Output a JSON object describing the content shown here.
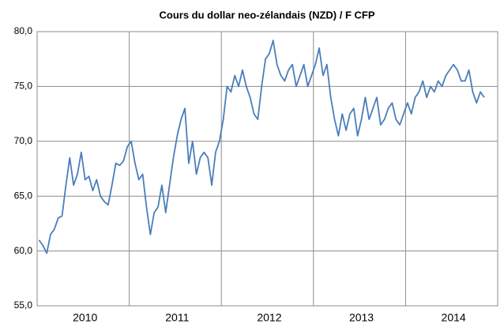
{
  "chart_data": {
    "type": "line",
    "title": "Cours du dollar neo-zélandais (NZD) / F CFP",
    "categories": [
      null,
      null,
      null,
      null,
      null,
      null,
      null,
      null,
      null,
      null,
      null,
      null,
      "2010",
      null,
      null,
      null,
      null,
      null,
      null,
      null,
      null,
      null,
      null,
      null,
      null,
      null,
      null,
      null,
      null,
      null,
      null,
      null,
      null,
      null,
      null,
      null,
      "2011",
      null,
      null,
      null,
      null,
      null,
      null,
      null,
      null,
      null,
      null,
      null,
      null,
      null,
      null,
      null,
      null,
      null,
      null,
      null,
      null,
      null,
      null,
      null,
      "2012",
      null,
      null,
      null,
      null,
      null,
      null,
      null,
      null,
      null,
      null,
      null,
      null,
      null,
      null,
      null,
      null,
      null,
      null,
      null,
      null,
      null,
      null,
      null,
      "2013",
      null,
      null,
      null,
      null,
      null,
      null,
      null,
      null,
      null,
      null,
      null,
      null,
      null,
      null,
      null,
      null,
      null,
      null,
      null,
      null,
      null,
      null,
      null,
      "2014",
      null,
      null,
      null,
      null,
      null,
      null,
      null,
      null,
      null,
      null,
      null
    ],
    "series": [
      {
        "name": "NZD",
        "color": "#4a7ebb",
        "values": [
          61,
          60.5,
          59.8,
          61.5,
          62,
          63,
          63.2,
          66,
          68.5,
          66,
          67,
          69,
          66.5,
          66.8,
          65.5,
          66.5,
          65,
          64.5,
          64.2,
          66,
          68,
          67.8,
          68.2,
          69.5,
          70,
          68,
          66.5,
          67,
          64,
          61.5,
          63.5,
          64,
          66,
          63.5,
          66,
          68.5,
          70.5,
          72,
          73,
          68,
          70,
          67,
          68.5,
          69,
          68.5,
          66,
          69,
          70,
          72,
          75,
          74.5,
          76,
          75,
          76.5,
          75,
          74,
          72.5,
          72,
          75,
          77.5,
          78,
          79.2,
          77,
          76,
          75.5,
          76.5,
          77,
          75,
          76,
          77,
          75,
          76,
          77,
          78.5,
          76,
          77,
          74,
          72,
          70.5,
          72.5,
          71,
          72.5,
          73,
          70.5,
          72,
          74,
          72,
          73,
          74,
          71.5,
          72,
          73,
          73.5,
          72,
          71.5,
          72.5,
          73.5,
          72.5,
          74,
          74.5,
          75.5,
          74,
          75,
          74.5,
          75.5,
          75,
          76,
          76.5,
          77,
          76.5,
          75.5,
          75.5,
          76.5,
          74.5,
          73.5,
          74.5,
          74,
          null,
          null,
          null
        ]
      }
    ],
    "ylim": [
      55,
      80
    ],
    "yticks": [
      {
        "value": 55,
        "label": "55,0"
      },
      {
        "value": 60,
        "label": "60,0"
      },
      {
        "value": 65,
        "label": "65,0"
      },
      {
        "value": 70,
        "label": "70,0"
      },
      {
        "value": 75,
        "label": "75,0"
      },
      {
        "value": 80,
        "label": "80,0"
      }
    ],
    "grid": true
  }
}
